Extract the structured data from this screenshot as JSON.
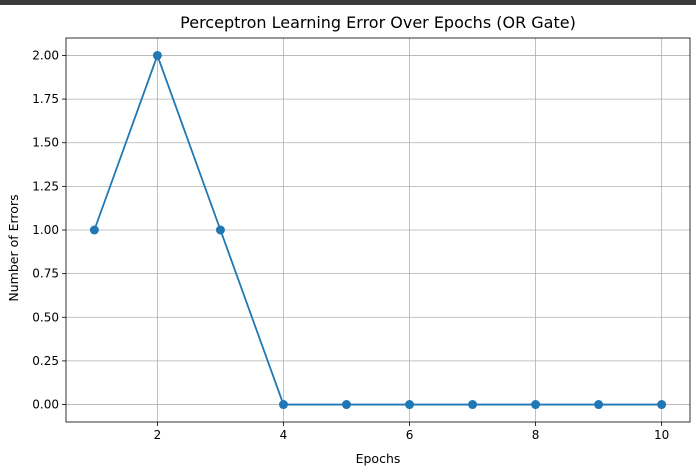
{
  "chart_data": {
    "type": "line",
    "title": "Perceptron Learning Error Over Epochs (OR Gate)",
    "xlabel": "Epochs",
    "ylabel": "Number of Errors",
    "x": [
      1,
      2,
      3,
      4,
      5,
      6,
      7,
      8,
      9,
      10
    ],
    "series": [
      {
        "values": [
          1,
          2,
          1,
          0,
          0,
          0,
          0,
          0,
          0,
          0
        ],
        "color": "#1f77b4",
        "marker": "circle"
      }
    ],
    "xlim": [
      0.55,
      10.45
    ],
    "ylim": [
      -0.1,
      2.1
    ],
    "xticks": [
      2,
      4,
      6,
      8,
      10
    ],
    "xtick_labels": [
      "2",
      "4",
      "6",
      "8",
      "10"
    ],
    "yticks": [
      0,
      0.25,
      0.5,
      0.75,
      1.0,
      1.25,
      1.5,
      1.75,
      2.0
    ],
    "ytick_labels": [
      "0.00",
      "0.25",
      "0.50",
      "0.75",
      "1.00",
      "1.25",
      "1.50",
      "1.75",
      "2.00"
    ],
    "grid": true,
    "grid_color": "#b0b0b0"
  }
}
